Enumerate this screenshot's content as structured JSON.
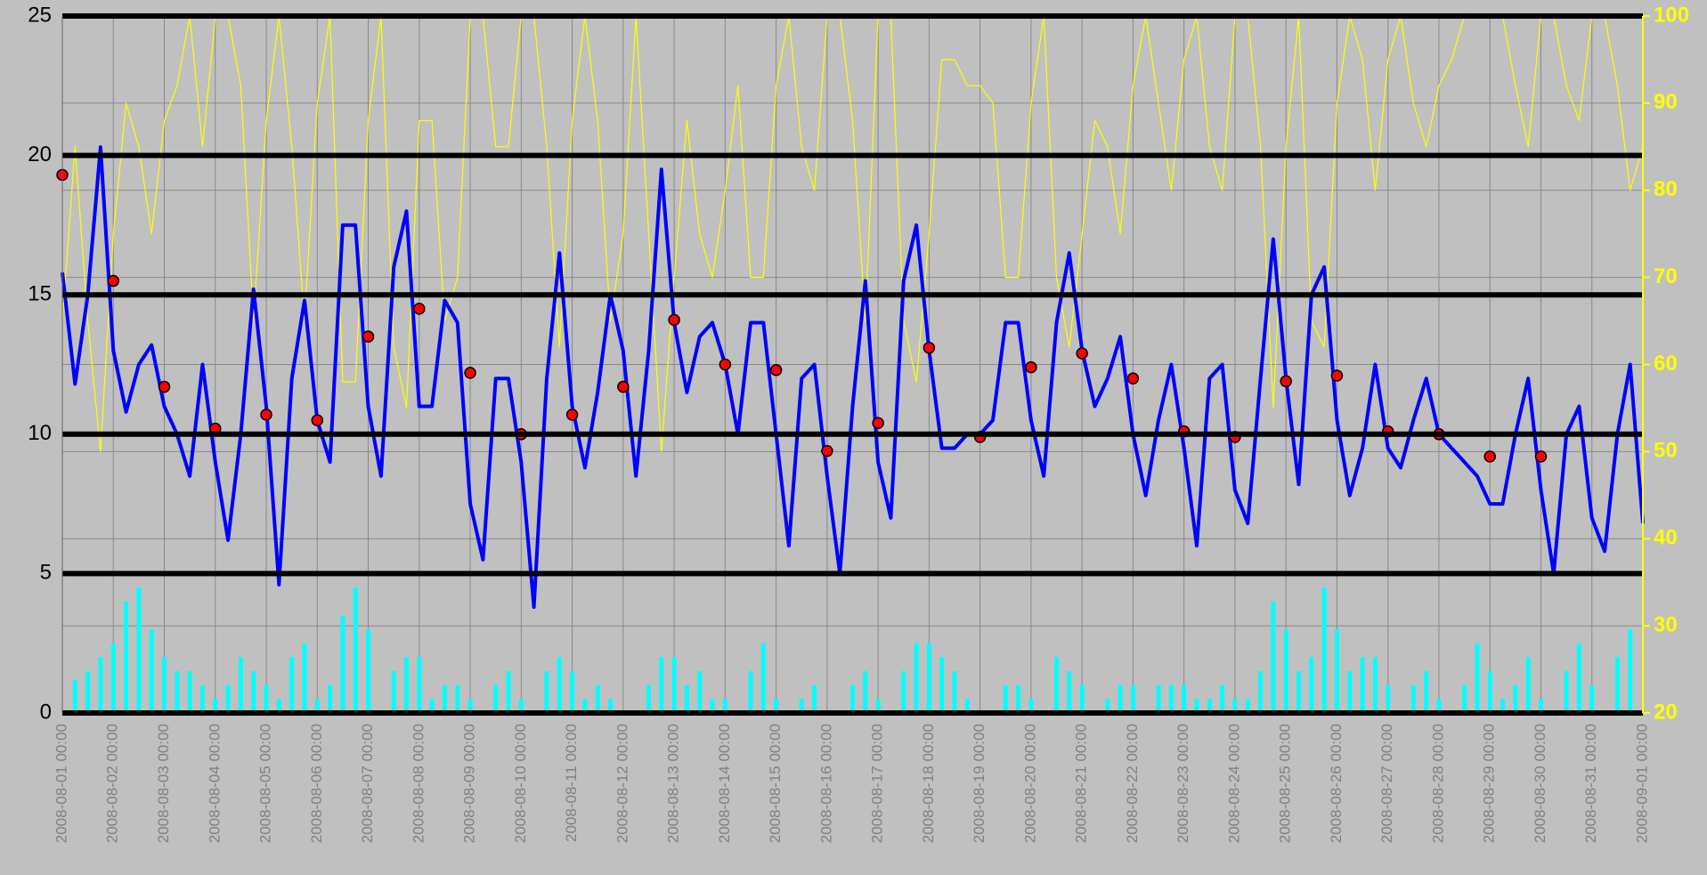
{
  "chart_data": {
    "type": "line",
    "background": "#c0c0c0",
    "xlim": [
      "2008-08-01 00:00",
      "2008-09-01 00:00"
    ],
    "xticks": [
      "2008-08-01 00:00",
      "2008-08-02 00:00",
      "2008-08-03 00:00",
      "2008-08-04 00:00",
      "2008-08-05 00:00",
      "2008-08-06 00:00",
      "2008-08-07 00:00",
      "2008-08-08 00:00",
      "2008-08-09 00:00",
      "2008-08-10 00:00",
      "2008-08-11 00:00",
      "2008-08-12 00:00",
      "2008-08-13 00:00",
      "2008-08-14 00:00",
      "2008-08-15 00:00",
      "2008-08-16 00:00",
      "2008-08-17 00:00",
      "2008-08-18 00:00",
      "2008-08-19 00:00",
      "2008-08-20 00:00",
      "2008-08-21 00:00",
      "2008-08-22 00:00",
      "2008-08-23 00:00",
      "2008-08-24 00:00",
      "2008-08-25 00:00",
      "2008-08-26 00:00",
      "2008-08-27 00:00",
      "2008-08-28 00:00",
      "2008-08-29 00:00",
      "2008-08-30 00:00",
      "2008-08-31 00:00",
      "2008-09-01 00:00"
    ],
    "ylim": [
      0,
      25
    ],
    "yticks": [
      0,
      5,
      10,
      15,
      20,
      25
    ],
    "y2lim": [
      20,
      100
    ],
    "y2ticks": [
      20,
      30,
      40,
      50,
      60,
      70,
      80,
      90,
      100
    ],
    "y2color": "#ffff00",
    "grid": true,
    "x": [
      "2008-08-01 00:00",
      "2008-08-01 06:00",
      "2008-08-01 12:00",
      "2008-08-01 18:00",
      "2008-08-02 00:00",
      "2008-08-02 06:00",
      "2008-08-02 12:00",
      "2008-08-02 18:00",
      "2008-08-03 00:00",
      "2008-08-03 06:00",
      "2008-08-03 12:00",
      "2008-08-03 18:00",
      "2008-08-04 00:00",
      "2008-08-04 06:00",
      "2008-08-04 12:00",
      "2008-08-04 18:00",
      "2008-08-05 00:00",
      "2008-08-05 06:00",
      "2008-08-05 12:00",
      "2008-08-05 18:00",
      "2008-08-06 00:00",
      "2008-08-06 06:00",
      "2008-08-06 12:00",
      "2008-08-06 18:00",
      "2008-08-07 00:00",
      "2008-08-07 06:00",
      "2008-08-07 12:00",
      "2008-08-07 18:00",
      "2008-08-08 00:00",
      "2008-08-08 06:00",
      "2008-08-08 12:00",
      "2008-08-08 18:00",
      "2008-08-09 00:00",
      "2008-08-09 06:00",
      "2008-08-09 12:00",
      "2008-08-09 18:00",
      "2008-08-10 00:00",
      "2008-08-10 06:00",
      "2008-08-10 12:00",
      "2008-08-10 18:00",
      "2008-08-11 00:00",
      "2008-08-11 06:00",
      "2008-08-11 12:00",
      "2008-08-11 18:00",
      "2008-08-12 00:00",
      "2008-08-12 06:00",
      "2008-08-12 12:00",
      "2008-08-12 18:00",
      "2008-08-13 00:00",
      "2008-08-13 06:00",
      "2008-08-13 12:00",
      "2008-08-13 18:00",
      "2008-08-14 00:00",
      "2008-08-14 06:00",
      "2008-08-14 12:00",
      "2008-08-14 18:00",
      "2008-08-15 00:00",
      "2008-08-15 06:00",
      "2008-08-15 12:00",
      "2008-08-15 18:00",
      "2008-08-16 00:00",
      "2008-08-16 06:00",
      "2008-08-16 12:00",
      "2008-08-16 18:00",
      "2008-08-17 00:00",
      "2008-08-17 06:00",
      "2008-08-17 12:00",
      "2008-08-17 18:00",
      "2008-08-18 00:00",
      "2008-08-18 06:00",
      "2008-08-18 12:00",
      "2008-08-18 18:00",
      "2008-08-19 00:00",
      "2008-08-19 06:00",
      "2008-08-19 12:00",
      "2008-08-19 18:00",
      "2008-08-20 00:00",
      "2008-08-20 06:00",
      "2008-08-20 12:00",
      "2008-08-20 18:00",
      "2008-08-21 00:00",
      "2008-08-21 06:00",
      "2008-08-21 12:00",
      "2008-08-21 18:00",
      "2008-08-22 00:00",
      "2008-08-22 06:00",
      "2008-08-22 12:00",
      "2008-08-22 18:00",
      "2008-08-23 00:00",
      "2008-08-23 06:00",
      "2008-08-23 12:00",
      "2008-08-23 18:00",
      "2008-08-24 00:00",
      "2008-08-24 06:00",
      "2008-08-24 12:00",
      "2008-08-24 18:00",
      "2008-08-25 00:00",
      "2008-08-25 06:00",
      "2008-08-25 12:00",
      "2008-08-25 18:00",
      "2008-08-26 00:00",
      "2008-08-26 06:00",
      "2008-08-26 12:00",
      "2008-08-26 18:00",
      "2008-08-27 00:00",
      "2008-08-27 06:00",
      "2008-08-27 12:00",
      "2008-08-27 18:00",
      "2008-08-28 00:00",
      "2008-08-28 06:00",
      "2008-08-28 12:00",
      "2008-08-28 18:00",
      "2008-08-29 00:00",
      "2008-08-29 06:00",
      "2008-08-29 12:00",
      "2008-08-29 18:00",
      "2008-08-30 00:00",
      "2008-08-30 06:00",
      "2008-08-30 12:00",
      "2008-08-30 18:00",
      "2008-08-31 00:00",
      "2008-08-31 06:00",
      "2008-08-31 12:00",
      "2008-08-31 18:00",
      "2008-09-01 00:00"
    ],
    "series": [
      {
        "mark": "line",
        "axis": "y2",
        "color": "#ffff00",
        "width": 1.2,
        "values": [
          65,
          85,
          65,
          50,
          75,
          90,
          85,
          75,
          88,
          92,
          100,
          85,
          100,
          100,
          92,
          65,
          88,
          100,
          85,
          65,
          90,
          100,
          58,
          58,
          88,
          100,
          62,
          55,
          88,
          88,
          65,
          70,
          100,
          100,
          85,
          85,
          100,
          100,
          85,
          62,
          88,
          100,
          88,
          65,
          75,
          100,
          75,
          50,
          70,
          88,
          75,
          70,
          80,
          92,
          70,
          70,
          92,
          100,
          85,
          80,
          100,
          100,
          88,
          65,
          100,
          100,
          65,
          58,
          75,
          95,
          95,
          92,
          92,
          90,
          70,
          70,
          90,
          100,
          70,
          62,
          75,
          88,
          85,
          75,
          92,
          100,
          90,
          80,
          95,
          100,
          85,
          80,
          100,
          100,
          85,
          55,
          85,
          100,
          65,
          62,
          90,
          100,
          95,
          80,
          95,
          100,
          90,
          85,
          92,
          95,
          100,
          100,
          100,
          100,
          92,
          85,
          100,
          100,
          92,
          88,
          100,
          100,
          92,
          80,
          85
        ]
      },
      {
        "mark": "bar",
        "color": "#00ffff",
        "values": [
          0,
          1.2,
          1.5,
          2,
          2.5,
          4,
          4.5,
          3,
          2,
          1.5,
          1.5,
          1,
          0.5,
          1,
          2,
          1.5,
          1,
          0.5,
          2,
          2.5,
          0.5,
          1,
          3.5,
          4.5,
          3,
          0,
          1.5,
          2,
          2,
          0.5,
          1,
          1,
          0.5,
          0,
          1,
          1.5,
          0.5,
          0,
          1.5,
          2,
          1.5,
          0.5,
          1,
          0.5,
          0,
          0,
          1,
          2,
          2,
          1,
          1.5,
          0.5,
          0.5,
          0,
          1.5,
          2.5,
          0.5,
          0,
          0.5,
          1,
          0,
          0,
          1,
          1.5,
          0.5,
          0,
          1.5,
          2.5,
          2.5,
          2,
          1.5,
          0.5,
          0,
          0,
          1,
          1,
          0.5,
          0,
          2,
          1.5,
          1,
          0,
          0.5,
          1,
          1,
          0,
          1,
          1,
          1,
          0.5,
          0.5,
          1,
          0.5,
          0.5,
          1.5,
          4,
          3,
          1.5,
          2,
          4.5,
          3,
          1.5,
          2,
          2,
          1,
          0,
          1,
          1.5,
          0.5,
          0,
          1,
          2.5,
          1.5,
          0.5,
          1,
          2,
          0.5,
          0,
          1.5,
          2.5,
          1,
          0,
          2,
          3,
          0
        ]
      },
      {
        "mark": "line",
        "color": "#0000ff",
        "width": 4,
        "values": [
          15.8,
          11.8,
          15,
          20.3,
          13,
          10.8,
          12.5,
          13.2,
          11,
          10,
          8.5,
          12.5,
          9,
          6.2,
          10,
          15.2,
          11,
          4.6,
          12,
          14.8,
          10.5,
          9,
          17.5,
          17.5,
          11,
          8.5,
          16,
          18,
          11,
          11,
          14.8,
          14,
          7.5,
          5.5,
          12,
          12,
          9,
          3.8,
          12,
          16.5,
          11,
          8.8,
          11.5,
          15,
          13,
          8.5,
          13,
          19.5,
          14,
          11.5,
          13.5,
          14,
          12.5,
          10,
          14,
          14,
          10,
          6,
          12,
          12.5,
          8.5,
          5,
          11,
          15.5,
          9,
          7,
          15.5,
          17.5,
          13,
          9.5,
          9.5,
          10,
          10,
          10.5,
          14,
          14,
          10.5,
          8.5,
          14,
          16.5,
          13,
          11,
          12,
          13.5,
          10,
          7.8,
          10.5,
          12.5,
          9.5,
          6,
          12,
          12.5,
          8,
          6.8,
          12,
          17,
          12,
          8.2,
          15,
          16,
          10.5,
          7.8,
          9.5,
          12.5,
          9.5,
          8.8,
          10.5,
          12,
          10,
          9.5,
          9,
          8.5,
          7.5,
          7.5,
          10,
          12,
          8,
          5,
          10,
          11,
          7,
          5.8,
          10,
          12.5,
          6.8
        ]
      },
      {
        "mark": "point",
        "color": "#ff0000",
        "x": [
          "2008-08-01 00:00",
          "2008-08-02 00:00",
          "2008-08-03 00:00",
          "2008-08-04 00:00",
          "2008-08-05 00:00",
          "2008-08-06 00:00",
          "2008-08-07 00:00",
          "2008-08-08 00:00",
          "2008-08-09 00:00",
          "2008-08-10 00:00",
          "2008-08-11 00:00",
          "2008-08-12 00:00",
          "2008-08-13 00:00",
          "2008-08-14 00:00",
          "2008-08-15 00:00",
          "2008-08-16 00:00",
          "2008-08-17 00:00",
          "2008-08-18 00:00",
          "2008-08-19 00:00",
          "2008-08-20 00:00",
          "2008-08-21 00:00",
          "2008-08-22 00:00",
          "2008-08-23 00:00",
          "2008-08-24 00:00",
          "2008-08-25 00:00",
          "2008-08-26 00:00",
          "2008-08-27 00:00",
          "2008-08-28 00:00",
          "2008-08-29 00:00",
          "2008-08-30 00:00"
        ],
        "values": [
          19.3,
          15.5,
          11.7,
          10.2,
          10.7,
          10.5,
          13.5,
          14.5,
          12.2,
          10,
          10.7,
          11.7,
          14.1,
          12.5,
          12.3,
          9.4,
          10.4,
          13.1,
          9.9,
          12.4,
          12.9,
          12,
          10.1,
          9.9,
          11.9,
          12.1,
          10.1,
          10,
          9.2,
          9.2
        ]
      }
    ]
  }
}
